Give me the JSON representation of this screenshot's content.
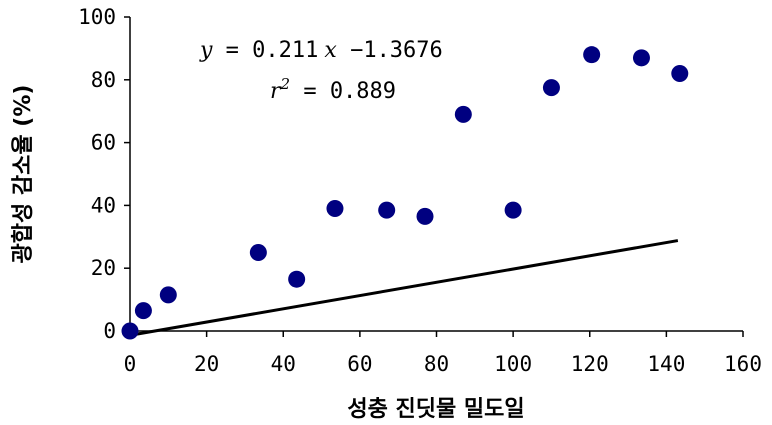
{
  "chart_data": {
    "type": "scatter",
    "xlabel": "성충 진딧물 밀도일",
    "ylabel": "광합성 감소율 (%)",
    "xlim": [
      0,
      160
    ],
    "ylim": [
      0,
      100
    ],
    "x_ticks": [
      0,
      20,
      40,
      60,
      80,
      100,
      120,
      140,
      160
    ],
    "y_ticks": [
      0,
      20,
      40,
      60,
      80,
      100
    ],
    "x_tick_labels": [
      "0",
      "20",
      "40",
      "60",
      "80",
      "100",
      "120",
      "140",
      "160"
    ],
    "y_tick_labels": [
      "0",
      "20",
      "40",
      "60",
      "80",
      "100"
    ],
    "grid": false,
    "series": [
      {
        "points": [
          {
            "x": 0,
            "y": 0
          },
          {
            "x": 3.5,
            "y": 6.5
          },
          {
            "x": 10,
            "y": 11.5
          },
          {
            "x": 33.5,
            "y": 25
          },
          {
            "x": 43.5,
            "y": 16.5
          },
          {
            "x": 53.5,
            "y": 39
          },
          {
            "x": 67,
            "y": 38.5
          },
          {
            "x": 77,
            "y": 36.5
          },
          {
            "x": 87,
            "y": 69
          },
          {
            "x": 100,
            "y": 38.5
          },
          {
            "x": 110,
            "y": 77.5
          },
          {
            "x": 120.5,
            "y": 88
          },
          {
            "x": 133.5,
            "y": 87
          },
          {
            "x": 143.5,
            "y": 82
          }
        ],
        "color": "#000080"
      }
    ],
    "trendline": {
      "slope": 0.211,
      "intercept": -1.3676,
      "x_range": [
        1,
        143
      ],
      "color": "#000000"
    },
    "annotations": {
      "equation": {
        "y": "y",
        "eq": " = 0.211",
        "x": "x",
        "rest": " −1.3676"
      },
      "r_squared": {
        "r": "r",
        "exp": "2",
        "value": " = 0.889"
      }
    }
  }
}
